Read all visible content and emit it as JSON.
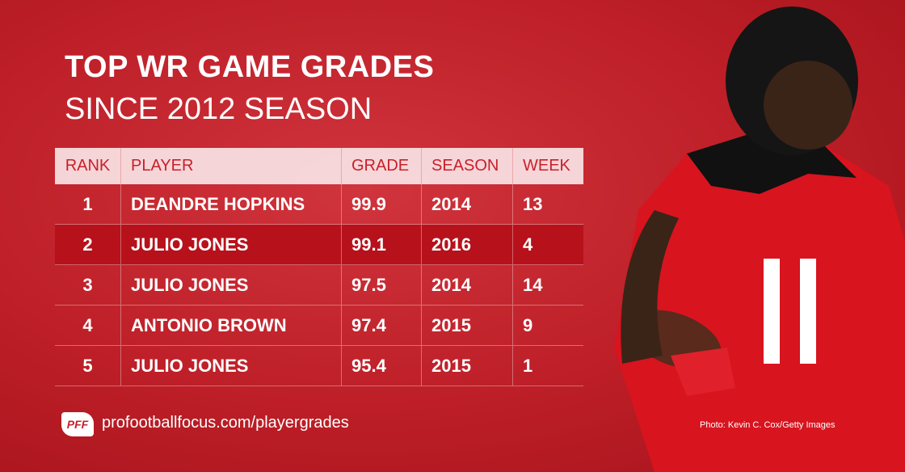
{
  "header": {
    "title": "TOP WR GAME GRADES",
    "subtitle": "SINCE 2012 SEASON"
  },
  "table": {
    "columns": [
      "RANK",
      "PLAYER",
      "GRADE",
      "SEASON",
      "WEEK"
    ],
    "rows": [
      [
        "1",
        "DEANDRE HOPKINS",
        "99.9",
        "2014",
        "13"
      ],
      [
        "2",
        "JULIO JONES",
        "99.1",
        "2016",
        "4"
      ],
      [
        "3",
        "JULIO JONES",
        "97.5",
        "2014",
        "14"
      ],
      [
        "4",
        "ANTONIO BROWN",
        "97.4",
        "2015",
        "9"
      ],
      [
        "5",
        "JULIO JONES",
        "95.4",
        "2015",
        "1"
      ]
    ]
  },
  "footer": {
    "logo": "PFF",
    "url": "profootballfocus.com/playergrades",
    "credit": "Photo: Kevin C. Cox/Getty Images"
  }
}
